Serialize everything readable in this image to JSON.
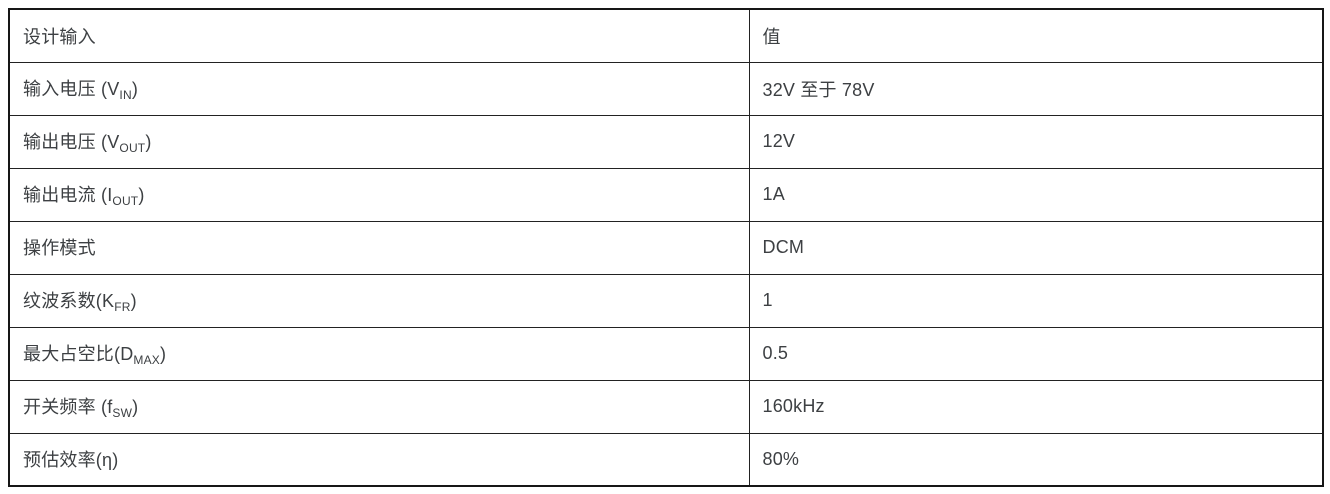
{
  "page": {
    "background_color": "#ffffff",
    "text_color": "#3d4043",
    "border_color": "#222222"
  },
  "table": {
    "header": {
      "design_input": "设计输入",
      "value": "值"
    },
    "rows": [
      {
        "label_prefix": "输入电压 (V",
        "label_sub": "IN",
        "label_suffix": ")",
        "value": "32V 至于 78V"
      },
      {
        "label_prefix": "输出电压 (V",
        "label_sub": "OUT",
        "label_suffix": ")",
        "value": "12V"
      },
      {
        "label_prefix": "输出电流 (I",
        "label_sub": "OUT",
        "label_suffix": ")",
        "value": "1A"
      },
      {
        "label_prefix": "操作模式",
        "label_sub": "",
        "label_suffix": "",
        "value": "DCM"
      },
      {
        "label_prefix": "纹波系数(K",
        "label_sub": "FR",
        "label_suffix": ")",
        "value": "1"
      },
      {
        "label_prefix": "最大占空比(D",
        "label_sub": "MAX",
        "label_suffix": ")",
        "value": "0.5"
      },
      {
        "label_prefix": "开关频率 (f",
        "label_sub": "SW",
        "label_suffix": ")",
        "value": "160kHz"
      },
      {
        "label_prefix": "预估效率(η)",
        "label_sub": "",
        "label_suffix": "",
        "value": "80%"
      }
    ]
  },
  "chart_data": {
    "type": "table",
    "title": "",
    "columns": [
      "设计输入",
      "值"
    ],
    "rows": [
      [
        "输入电压 (VIN)",
        "32V 至于 78V"
      ],
      [
        "输出电压 (VOUT)",
        "12V"
      ],
      [
        "输出电流 (IOUT)",
        "1A"
      ],
      [
        "操作模式",
        "DCM"
      ],
      [
        "纹波系数(KFR)",
        "1"
      ],
      [
        "最大占空比(DMAX)",
        "0.5"
      ],
      [
        "开关频率 (fSW)",
        "160kHz"
      ],
      [
        "预估效率(η)",
        "80%"
      ]
    ]
  }
}
